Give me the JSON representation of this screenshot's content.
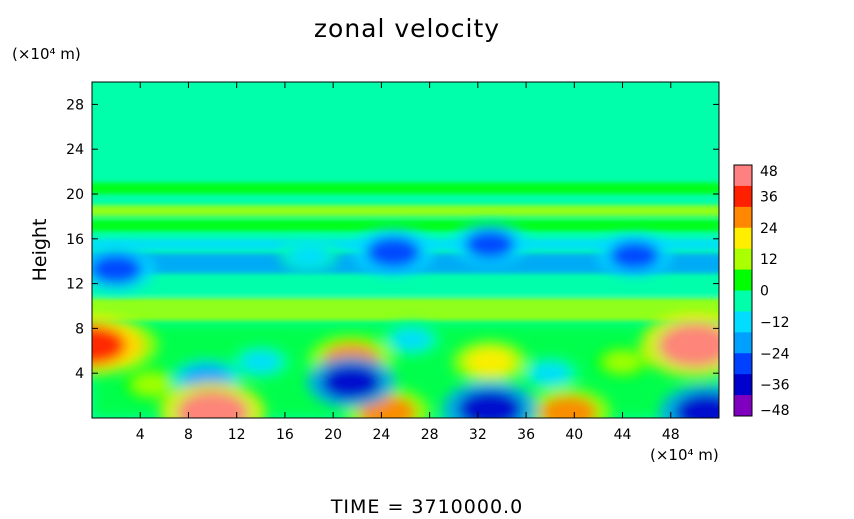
{
  "title": "zonal velocity",
  "y_unit": "(×10⁴ m)",
  "x_unit": "(×10⁴ m)",
  "ylabel": "Height",
  "footer": "TIME = 3710000.0",
  "chart_data": {
    "type": "heatmap",
    "title": "zonal velocity",
    "xlabel": "",
    "ylabel": "Height",
    "xlim": [
      0,
      52
    ],
    "ylim": [
      0,
      30
    ],
    "xticks": [
      4,
      8,
      12,
      16,
      20,
      24,
      28,
      32,
      36,
      40,
      44,
      48
    ],
    "yticks": [
      4,
      8,
      12,
      16,
      20,
      24,
      28
    ],
    "colorbar": {
      "range": [
        -48,
        48
      ],
      "ticks": [
        48,
        36,
        24,
        12,
        0,
        -12,
        -24,
        -36,
        -48
      ],
      "colors": [
        "#ff8080",
        "#ff2000",
        "#ff8800",
        "#ffee00",
        "#aaff00",
        "#00ff00",
        "#00ffaa",
        "#00ddff",
        "#00a0ff",
        "#0040ff",
        "#0000cc",
        "#8000c0"
      ]
    },
    "bands": [
      {
        "y": 20.5,
        "value": 5
      },
      {
        "y": 18.5,
        "value": 14
      },
      {
        "y": 17.2,
        "value": 8
      },
      {
        "y": 15.5,
        "value": -12
      },
      {
        "y": 14.2,
        "value": -18
      },
      {
        "y": 13.4,
        "value": -20
      },
      {
        "y": 11.5,
        "value": -6
      },
      {
        "y": 10.2,
        "value": 10
      },
      {
        "y": 9.2,
        "value": 14
      }
    ],
    "features": [
      {
        "x": 0,
        "y": 6.5,
        "value": 40
      },
      {
        "x": 2,
        "y": 6.5,
        "value": 30
      },
      {
        "x": 10,
        "y": 0.5,
        "value": 42
      },
      {
        "x": 9.5,
        "y": 3.5,
        "value": -20
      },
      {
        "x": 5,
        "y": 3,
        "value": 14
      },
      {
        "x": 14,
        "y": 5,
        "value": -14
      },
      {
        "x": 21.5,
        "y": 5.2,
        "value": 30
      },
      {
        "x": 21.5,
        "y": 3.2,
        "value": -32
      },
      {
        "x": 24.5,
        "y": 0.5,
        "value": 30
      },
      {
        "x": 26.5,
        "y": 7,
        "value": -14
      },
      {
        "x": 33,
        "y": 5,
        "value": 24
      },
      {
        "x": 33,
        "y": 0.8,
        "value": -36
      },
      {
        "x": 38,
        "y": 4,
        "value": -14
      },
      {
        "x": 39.5,
        "y": 0.5,
        "value": 30
      },
      {
        "x": 44,
        "y": 5,
        "value": 12
      },
      {
        "x": 50,
        "y": 6.5,
        "value": 44
      },
      {
        "x": 51,
        "y": 0.5,
        "value": -36
      },
      {
        "x": 18,
        "y": 14.5,
        "value": -14
      },
      {
        "x": 25,
        "y": 14.8,
        "value": -28
      },
      {
        "x": 33,
        "y": 15.5,
        "value": -24
      },
      {
        "x": 45,
        "y": 14.5,
        "value": -24
      },
      {
        "x": 2,
        "y": 13.3,
        "value": -26
      }
    ]
  }
}
